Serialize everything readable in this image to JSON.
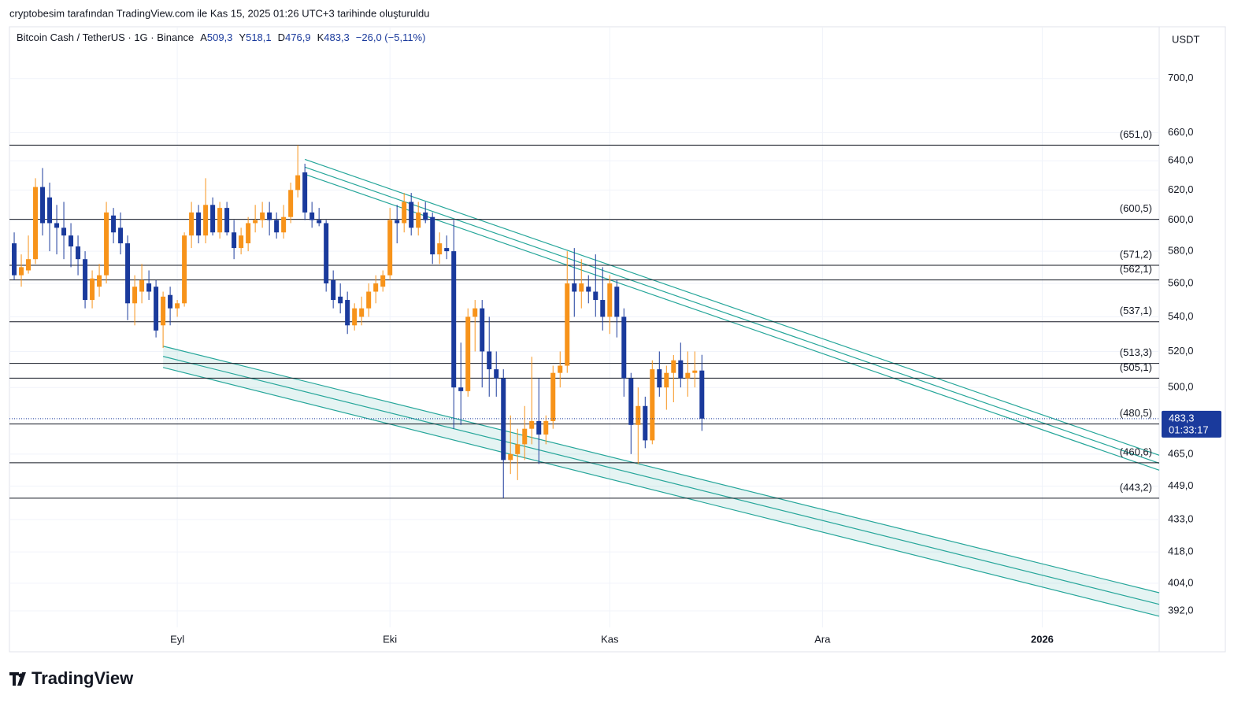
{
  "header": {
    "credit": "cryptobesim tarafından TradingView.com ile Kas 15, 2025 01:26 UTC+3 tarihinde oluşturuldu",
    "logo": "TradingView"
  },
  "chart_data": {
    "type": "candlestick",
    "symbol": "Bitcoin Cash / TetherUS · 1G · Binance",
    "ohlc_labels": [
      {
        "key": "A",
        "value": "509,3"
      },
      {
        "key": "Y",
        "value": "518,1"
      },
      {
        "key": "D",
        "value": "476,9"
      },
      {
        "key": "K",
        "value": "483,3"
      }
    ],
    "change": "−26,0 (−5,11%)",
    "currency": "USDT",
    "last_price_label": "483,3",
    "countdown": "01:33:17",
    "log_scale": true,
    "grid": true,
    "up_color": "#f7931a",
    "down_color": "#1a3a9c",
    "level_color": "#131722",
    "channel_color": "#26a69a",
    "categories": [
      null,
      null,
      null,
      null,
      null,
      null,
      null,
      null,
      null,
      null,
      null,
      null,
      null,
      null,
      null,
      null,
      null,
      null,
      null,
      null,
      null,
      null,
      null,
      null,
      null,
      null,
      null,
      null,
      null,
      null,
      null,
      null,
      null,
      null,
      null,
      null,
      null,
      null,
      null,
      null,
      null,
      null,
      null,
      null,
      null,
      null,
      null,
      null,
      null,
      null,
      null,
      null,
      null,
      null,
      null,
      null,
      null,
      null,
      null,
      null,
      null,
      null,
      null,
      null,
      null,
      null,
      null,
      null,
      null,
      null,
      null,
      null,
      null,
      null,
      null,
      null,
      null,
      null,
      null,
      null,
      null,
      null,
      null,
      null,
      null,
      null,
      null,
      null,
      null,
      null,
      null,
      null,
      null,
      null,
      null,
      null,
      null,
      null
    ],
    "open": [
      585,
      565,
      568,
      575,
      622,
      615,
      598,
      595,
      590,
      583,
      575,
      550,
      558,
      565,
      603,
      595,
      585,
      548,
      555,
      560,
      558,
      535,
      553,
      545,
      548,
      590,
      605,
      590,
      610,
      592,
      608,
      592,
      582,
      585,
      598,
      600,
      605,
      600,
      592,
      602,
      620,
      632,
      605,
      600,
      598,
      562,
      552,
      550,
      535,
      540,
      545,
      555,
      558,
      565,
      600,
      598,
      612,
      595,
      605,
      602,
      578,
      582,
      580,
      500,
      498,
      540,
      545,
      520,
      510,
      505,
      462,
      465,
      470,
      478,
      482,
      475,
      482,
      508,
      512,
      560,
      555,
      558,
      555,
      550,
      540,
      558,
      540,
      505,
      480,
      490,
      472,
      510,
      500,
      508,
      515,
      505,
      508,
      509.3
    ],
    "high": [
      592,
      578,
      590,
      628,
      635,
      625,
      610,
      612,
      598,
      590,
      580,
      568,
      572,
      612,
      608,
      605,
      590,
      565,
      572,
      568,
      562,
      555,
      558,
      550,
      592,
      612,
      610,
      628,
      615,
      612,
      612,
      600,
      595,
      602,
      610,
      612,
      612,
      605,
      610,
      625,
      651,
      638,
      612,
      608,
      600,
      568,
      560,
      555,
      548,
      552,
      560,
      565,
      568,
      608,
      610,
      618,
      618,
      612,
      612,
      605,
      592,
      590,
      600,
      525,
      545,
      550,
      550,
      540,
      520,
      510,
      485,
      478,
      490,
      517,
      505,
      485,
      512,
      520,
      580,
      582,
      575,
      565,
      578,
      570,
      565,
      562,
      545,
      508,
      500,
      495,
      515,
      520,
      512,
      518,
      525,
      520,
      520,
      518.1
    ],
    "low": [
      562,
      558,
      566,
      572,
      590,
      580,
      578,
      575,
      570,
      565,
      545,
      545,
      552,
      560,
      585,
      578,
      538,
      535,
      548,
      550,
      528,
      522,
      535,
      540,
      546,
      582,
      585,
      585,
      590,
      588,
      590,
      575,
      578,
      580,
      592,
      595,
      590,
      588,
      588,
      598,
      615,
      600,
      595,
      596,
      555,
      545,
      542,
      530,
      532,
      535,
      540,
      548,
      555,
      562,
      585,
      592,
      590,
      590,
      598,
      572,
      572,
      575,
      478,
      480,
      495,
      520,
      500,
      495,
      495,
      443.2,
      455,
      452,
      462,
      470,
      460,
      470,
      478,
      500,
      508,
      540,
      545,
      548,
      540,
      532,
      530,
      528,
      495,
      465,
      460,
      468,
      470,
      495,
      488,
      492,
      500,
      495,
      500,
      476.9
    ],
    "close": [
      565,
      570,
      575,
      622,
      598,
      598,
      595,
      590,
      583,
      575,
      550,
      563,
      565,
      605,
      592,
      585,
      548,
      558,
      562,
      555,
      532,
      552,
      545,
      548,
      590,
      605,
      590,
      610,
      592,
      608,
      592,
      582,
      590,
      598,
      600,
      605,
      600,
      592,
      602,
      620,
      630,
      605,
      600,
      598,
      560,
      550,
      548,
      535,
      545,
      545,
      555,
      560,
      565,
      600,
      598,
      612,
      595,
      605,
      600,
      578,
      585,
      580,
      500,
      498,
      540,
      545,
      520,
      510,
      505,
      462,
      465,
      470,
      478,
      482,
      475,
      482,
      508,
      512,
      560,
      555,
      560,
      555,
      550,
      540,
      560,
      540,
      505,
      480,
      490,
      472,
      510,
      500,
      508,
      515,
      505,
      508,
      509.3,
      483.3
    ],
    "xlim": [
      -0.67,
      161.5
    ],
    "xticks": [
      {
        "value": 23,
        "label": "Eyl"
      },
      {
        "value": 53,
        "label": "Eki"
      },
      {
        "value": 84,
        "label": "Kas"
      },
      {
        "value": 114,
        "label": "Ara"
      },
      {
        "value": 145,
        "label": "2026"
      }
    ],
    "ylim": [
      385,
      740
    ],
    "yticks": [
      {
        "value": 700,
        "label": "700,0"
      },
      {
        "value": 660,
        "label": "660,0"
      },
      {
        "value": 640,
        "label": "640,0"
      },
      {
        "value": 620,
        "label": "620,0"
      },
      {
        "value": 600,
        "label": "600,0"
      },
      {
        "value": 580,
        "label": "580,0"
      },
      {
        "value": 560,
        "label": "560,0"
      },
      {
        "value": 540,
        "label": "540,0"
      },
      {
        "value": 520,
        "label": "520,0"
      },
      {
        "value": 500,
        "label": "500,0"
      },
      {
        "value": 465,
        "label": "465,0"
      },
      {
        "value": 449,
        "label": "449,0"
      },
      {
        "value": 433,
        "label": "433,0"
      },
      {
        "value": 418,
        "label": "418,0"
      },
      {
        "value": 404,
        "label": "404,0"
      },
      {
        "value": 392,
        "label": "392,0"
      }
    ],
    "levels": [
      {
        "value": 651,
        "label": "(651,0)"
      },
      {
        "value": 600.5,
        "label": "(600,5)"
      },
      {
        "value": 571.2,
        "label": "(571,2)"
      },
      {
        "value": 562.1,
        "label": "(562,1)"
      },
      {
        "value": 537.1,
        "label": "(537,1)"
      },
      {
        "value": 513.3,
        "label": "(513,3)"
      },
      {
        "value": 505.1,
        "label": "(505,1)"
      },
      {
        "value": 480.5,
        "label": "(480,5)"
      },
      {
        "value": 460.6,
        "label": "(460,6)"
      },
      {
        "value": 443.2,
        "label": "(443,2)"
      }
    ],
    "channels": [
      {
        "filled": false,
        "lines": [
          {
            "x": [
              41,
              161.5
            ],
            "values": [
              641,
              464.4
            ]
          },
          {
            "x": [
              41,
              161.5
            ],
            "values": [
              635.6,
              460.4
            ]
          },
          {
            "x": [
              41,
              161.5
            ],
            "values": [
              630.7,
              456.9
            ]
          }
        ]
      },
      {
        "filled": true,
        "lines": [
          {
            "x": [
              21,
              161.5
            ],
            "values": [
              523,
              399.8
            ]
          },
          {
            "x": [
              21,
              161.5
            ],
            "values": [
              517.2,
              394.8
            ]
          },
          {
            "x": [
              21,
              161.5
            ],
            "values": [
              511,
              389.7
            ]
          }
        ]
      }
    ]
  }
}
